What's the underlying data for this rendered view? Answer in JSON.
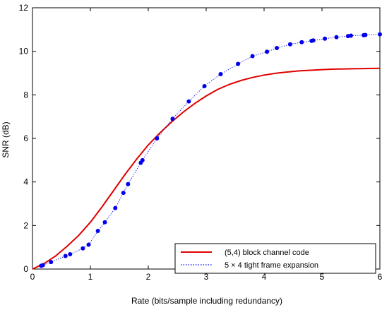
{
  "chart_data": {
    "type": "line",
    "xlabel": "Rate (bits/sample including redundancy)",
    "ylabel": "SNR (dB)",
    "xlim": [
      0,
      6
    ],
    "ylim": [
      0,
      12
    ],
    "xticks": [
      "0",
      "1",
      "2",
      "3",
      "4",
      "5",
      "6"
    ],
    "yticks": [
      "0",
      "2",
      "4",
      "6",
      "8",
      "10",
      "12"
    ],
    "grid": false,
    "legend_position": "bottom-right",
    "series": [
      {
        "name": "(5,4) block channel code",
        "style": "solid-line",
        "color": "#e00000",
        "x": [
          0,
          0.2,
          0.4,
          0.6,
          0.8,
          1.0,
          1.2,
          1.4,
          1.6,
          1.8,
          2.0,
          2.2,
          2.4,
          2.6,
          2.8,
          3.0,
          3.2,
          3.4,
          3.6,
          3.8,
          4.0,
          4.2,
          4.4,
          4.6,
          4.8,
          5.0,
          5.2,
          5.4,
          5.6,
          5.8,
          6.0
        ],
        "y": [
          0.0,
          0.25,
          0.6,
          1.05,
          1.55,
          2.15,
          2.85,
          3.6,
          4.35,
          5.05,
          5.7,
          6.25,
          6.75,
          7.2,
          7.6,
          7.95,
          8.25,
          8.48,
          8.66,
          8.8,
          8.91,
          8.99,
          9.05,
          9.1,
          9.13,
          9.16,
          9.18,
          9.19,
          9.2,
          9.21,
          9.22
        ]
      },
      {
        "name": "5 × 4 tight frame expansion",
        "style": "dotted-line-with-markers",
        "color": "#0000ee",
        "x": [
          0.15,
          0.18,
          0.32,
          0.57,
          0.65,
          0.87,
          0.97,
          1.13,
          1.25,
          1.43,
          1.57,
          1.65,
          1.87,
          1.9,
          2.15,
          2.42,
          2.7,
          2.97,
          3.25,
          3.55,
          3.8,
          4.05,
          4.22,
          4.45,
          4.65,
          4.82,
          4.85,
          5.05,
          5.25,
          5.45,
          5.5,
          5.72,
          5.75,
          6.0
        ],
        "y": [
          0.15,
          0.18,
          0.32,
          0.6,
          0.68,
          0.95,
          1.12,
          1.75,
          2.15,
          2.8,
          3.5,
          3.9,
          4.88,
          5.0,
          6.0,
          6.9,
          7.7,
          8.4,
          8.95,
          9.42,
          9.78,
          9.98,
          10.15,
          10.32,
          10.42,
          10.48,
          10.5,
          10.58,
          10.65,
          10.7,
          10.72,
          10.74,
          10.75,
          10.78
        ]
      }
    ]
  }
}
